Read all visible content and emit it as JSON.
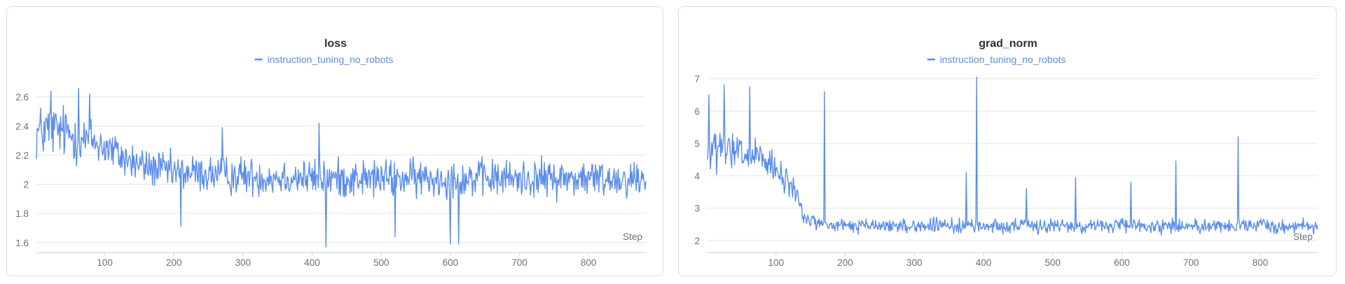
{
  "chart_data": [
    {
      "type": "line",
      "title": "loss",
      "xlabel": "Step",
      "ylabel": "",
      "xlim": [
        1,
        883
      ],
      "ylim": [
        1.57,
        2.68
      ],
      "yticks": [
        1.6,
        1.8,
        2,
        2.2,
        2.4,
        2.6
      ],
      "ytick_labels": [
        "1.6",
        "1.8",
        "2",
        "2.2",
        "2.4",
        "2.6"
      ],
      "xticks": [
        100,
        200,
        300,
        400,
        500,
        600,
        700,
        800
      ],
      "xtick_labels": [
        "100",
        "200",
        "300",
        "400",
        "500",
        "600",
        "700",
        "800"
      ],
      "grid": true,
      "legend": "top-center",
      "color": "#5b8def",
      "series": [
        {
          "name": "instruction_tuning_no_robots",
          "x": [
            1,
            20,
            40,
            60,
            80,
            100,
            120,
            140,
            160,
            180,
            200,
            220,
            240,
            260,
            280,
            300,
            320,
            340,
            360,
            380,
            400,
            420,
            440,
            460,
            480,
            500,
            520,
            540,
            560,
            580,
            600,
            620,
            640,
            660,
            680,
            700,
            720,
            740,
            760,
            780,
            800,
            820,
            840,
            860,
            883
          ],
          "y": [
            2.35,
            2.38,
            2.36,
            2.32,
            2.3,
            2.26,
            2.2,
            2.15,
            2.12,
            2.1,
            2.08,
            2.08,
            2.07,
            2.07,
            2.06,
            2.06,
            2.05,
            2.05,
            2.05,
            2.05,
            2.04,
            2.04,
            2.04,
            2.04,
            2.04,
            2.04,
            2.04,
            2.04,
            2.04,
            2.04,
            2.04,
            2.04,
            2.04,
            2.04,
            2.04,
            2.04,
            2.04,
            2.04,
            2.04,
            2.04,
            2.04,
            2.04,
            2.04,
            2.04,
            2.04
          ],
          "noise": [
            0.18,
            0.18,
            0.17,
            0.16,
            0.15,
            0.14,
            0.13,
            0.13,
            0.12,
            0.12,
            0.12,
            0.12,
            0.12,
            0.12,
            0.12,
            0.12,
            0.12,
            0.12,
            0.12,
            0.12,
            0.12,
            0.12,
            0.12,
            0.12,
            0.12,
            0.12,
            0.12,
            0.12,
            0.12,
            0.12,
            0.12,
            0.12,
            0.12,
            0.12,
            0.12,
            0.12,
            0.12,
            0.12,
            0.12,
            0.12,
            0.12,
            0.12,
            0.12,
            0.12,
            0.12
          ],
          "spikes": [
            [
              22,
              2.64
            ],
            [
              62,
              2.66
            ],
            [
              78,
              2.62
            ],
            [
              210,
              1.71
            ],
            [
              420,
              1.57
            ],
            [
              600,
              1.59
            ],
            [
              612,
              1.59
            ],
            [
              520,
              1.64
            ],
            [
              270,
              2.39
            ],
            [
              410,
              2.42
            ]
          ]
        }
      ]
    },
    {
      "type": "line",
      "title": "grad_norm",
      "xlabel": "Step",
      "ylabel": "",
      "xlim": [
        1,
        883
      ],
      "ylim": [
        1.8,
        7.1
      ],
      "yticks": [
        2,
        3,
        4,
        5,
        6,
        7
      ],
      "ytick_labels": [
        "2",
        "3",
        "4",
        "5",
        "6",
        "7"
      ],
      "xticks": [
        100,
        200,
        300,
        400,
        500,
        600,
        700,
        800
      ],
      "xtick_labels": [
        "100",
        "200",
        "300",
        "400",
        "500",
        "600",
        "700",
        "800"
      ],
      "grid": true,
      "legend": "top-center",
      "color": "#5b8def",
      "series": [
        {
          "name": "instruction_tuning_no_robots",
          "x": [
            1,
            20,
            40,
            60,
            80,
            100,
            120,
            130,
            140,
            160,
            180,
            200,
            220,
            240,
            260,
            280,
            300,
            320,
            340,
            360,
            380,
            400,
            420,
            440,
            460,
            480,
            500,
            520,
            540,
            560,
            580,
            600,
            620,
            640,
            660,
            680,
            700,
            720,
            740,
            760,
            780,
            800,
            820,
            840,
            860,
            883
          ],
          "y": [
            4.7,
            4.8,
            4.7,
            4.6,
            4.5,
            4.1,
            3.7,
            3.5,
            2.7,
            2.55,
            2.45,
            2.45,
            2.45,
            2.45,
            2.45,
            2.45,
            2.45,
            2.45,
            2.45,
            2.45,
            2.45,
            2.45,
            2.45,
            2.45,
            2.45,
            2.45,
            2.45,
            2.45,
            2.45,
            2.45,
            2.45,
            2.45,
            2.45,
            2.45,
            2.45,
            2.45,
            2.45,
            2.45,
            2.45,
            2.45,
            2.45,
            2.45,
            2.45,
            2.45,
            2.45,
            2.45
          ],
          "noise": [
            0.6,
            0.6,
            0.6,
            0.55,
            0.5,
            0.45,
            0.4,
            0.35,
            0.2,
            0.2,
            0.2,
            0.2,
            0.2,
            0.2,
            0.2,
            0.2,
            0.2,
            0.2,
            0.2,
            0.2,
            0.2,
            0.2,
            0.2,
            0.2,
            0.2,
            0.2,
            0.2,
            0.2,
            0.2,
            0.2,
            0.2,
            0.2,
            0.2,
            0.2,
            0.2,
            0.2,
            0.2,
            0.2,
            0.2,
            0.2,
            0.2,
            0.2,
            0.2,
            0.2,
            0.2,
            0.2
          ],
          "spikes": [
            [
              3,
              6.5
            ],
            [
              25,
              6.8
            ],
            [
              62,
              6.75
            ],
            [
              170,
              6.6
            ],
            [
              375,
              4.1
            ],
            [
              390,
              7.05
            ],
            [
              462,
              3.6
            ],
            [
              533,
              3.95
            ],
            [
              613,
              3.8
            ],
            [
              678,
              4.45
            ],
            [
              768,
              5.2
            ]
          ]
        }
      ]
    }
  ]
}
